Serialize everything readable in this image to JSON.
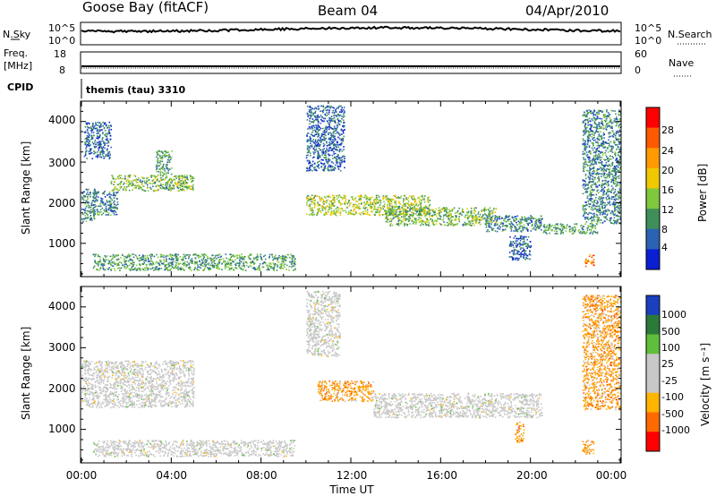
{
  "header": {
    "station": "Goose Bay (fitACF)",
    "beam": "Beam 04",
    "date": "04/Apr/2010"
  },
  "status_panels": {
    "nsky_label": "N.Sky",
    "nsky_ticks": [
      "10^5",
      "10^0"
    ],
    "nsearch_label": "N.Search",
    "nsearch_ticks": [
      "10^5",
      "10^0"
    ],
    "freq_label_1": "Freq.",
    "freq_label_2": "[MHz]",
    "freq_ticks": [
      "18",
      "8"
    ],
    "nave_label": "Nave",
    "nave_ticks": [
      "60",
      "0"
    ],
    "cpid_label": "CPID",
    "cpid_value": "themis (tau) 3310"
  },
  "panels": {
    "yaxis_label": "Slant Range [km]",
    "yticks": [
      "4000",
      "3000",
      "2000",
      "1000"
    ],
    "xticks": [
      "00:00",
      "04:00",
      "08:00",
      "12:00",
      "16:00",
      "20:00",
      "00:00"
    ],
    "xlabel": "Time UT"
  },
  "colorbars": {
    "power_label": "Power [dB]",
    "power_ticks": [
      "28",
      "24",
      "20",
      "16",
      "12",
      "8",
      "4"
    ],
    "velocity_label": "Velocity [m s⁻¹]",
    "velocity_ticks": [
      "1000",
      "500",
      "100",
      "25",
      "-25",
      "-100",
      "-500",
      "-1000"
    ],
    "power_colors": [
      "#ff0000",
      "#ff5a00",
      "#ff9a00",
      "#f0c800",
      "#7fc83c",
      "#3e8f5a",
      "#2b63b4",
      "#0a1fd2"
    ],
    "velocity_colors": [
      "#1a3fbf",
      "#2a7a3a",
      "#5fbf3a",
      "#c8c8c8",
      "#c8c8c8",
      "#ffb400",
      "#ff6a00",
      "#ff0000"
    ]
  },
  "chart_data": [
    {
      "type": "heatmap",
      "title": "",
      "xlabel": "Time UT",
      "ylabel": "Slant Range [km]",
      "xlim": [
        0,
        24
      ],
      "ylim": [
        180,
        4500
      ],
      "colorbar_label": "Power [dB]",
      "clim": [
        0,
        30
      ],
      "scatter_regions": [
        {
          "t_start": 0.0,
          "t_end": 0.6,
          "range_low": 1550,
          "range_high": 2350,
          "power": 8
        },
        {
          "t_start": 0.5,
          "t_end": 1.6,
          "range_low": 1700,
          "range_high": 2300,
          "power": 8
        },
        {
          "t_start": 1.3,
          "t_end": 5.0,
          "range_low": 2300,
          "range_high": 2700,
          "power": 12
        },
        {
          "t_start": 0.1,
          "t_end": 1.3,
          "range_low": 3100,
          "range_high": 4000,
          "power": 6
        },
        {
          "t_start": 3.3,
          "t_end": 4.0,
          "range_low": 2700,
          "range_high": 3300,
          "power": 10
        },
        {
          "t_start": 0.5,
          "t_end": 9.5,
          "range_low": 350,
          "range_high": 750,
          "power": 10
        },
        {
          "t_start": 10.0,
          "t_end": 11.7,
          "range_low": 2800,
          "range_high": 4400,
          "power": 6
        },
        {
          "t_start": 10.0,
          "t_end": 15.5,
          "range_low": 1700,
          "range_high": 2200,
          "power": 14
        },
        {
          "t_start": 13.5,
          "t_end": 18.5,
          "range_low": 1450,
          "range_high": 1900,
          "power": 12
        },
        {
          "t_start": 18.0,
          "t_end": 20.5,
          "range_low": 1300,
          "range_high": 1700,
          "power": 8
        },
        {
          "t_start": 19.0,
          "t_end": 20.0,
          "range_low": 600,
          "range_high": 1200,
          "power": 6
        },
        {
          "t_start": 20.5,
          "t_end": 23.0,
          "range_low": 1250,
          "range_high": 1500,
          "power": 10
        },
        {
          "t_start": 22.3,
          "t_end": 24.0,
          "range_low": 1500,
          "range_high": 4300,
          "power": 8
        },
        {
          "t_start": 22.4,
          "t_end": 22.8,
          "range_low": 450,
          "range_high": 750,
          "power": 22
        }
      ]
    },
    {
      "type": "heatmap",
      "title": "",
      "xlabel": "Time UT",
      "ylabel": "Slant Range [km]",
      "xlim": [
        0,
        24
      ],
      "ylim": [
        180,
        4500
      ],
      "colorbar_label": "Velocity [m s⁻¹]",
      "clim": [
        -1000,
        1000
      ],
      "scatter_regions": [
        {
          "t_start": 0.0,
          "t_end": 5.0,
          "range_low": 1550,
          "range_high": 2700,
          "velocity": 0
        },
        {
          "t_start": 0.5,
          "t_end": 9.5,
          "range_low": 350,
          "range_high": 750,
          "velocity": 0
        },
        {
          "t_start": 10.0,
          "t_end": 11.5,
          "range_low": 2800,
          "range_high": 4400,
          "velocity": 0
        },
        {
          "t_start": 10.5,
          "t_end": 13.0,
          "range_low": 1700,
          "range_high": 2200,
          "velocity": -150
        },
        {
          "t_start": 13.0,
          "t_end": 20.5,
          "range_low": 1300,
          "range_high": 1900,
          "velocity": 0
        },
        {
          "t_start": 19.3,
          "t_end": 19.7,
          "range_low": 700,
          "range_high": 1200,
          "velocity": -150
        },
        {
          "t_start": 22.3,
          "t_end": 24.0,
          "range_low": 1500,
          "range_high": 4300,
          "velocity": -50
        },
        {
          "t_start": 22.3,
          "t_end": 22.8,
          "range_low": 400,
          "range_high": 750,
          "velocity": -100
        }
      ]
    }
  ]
}
